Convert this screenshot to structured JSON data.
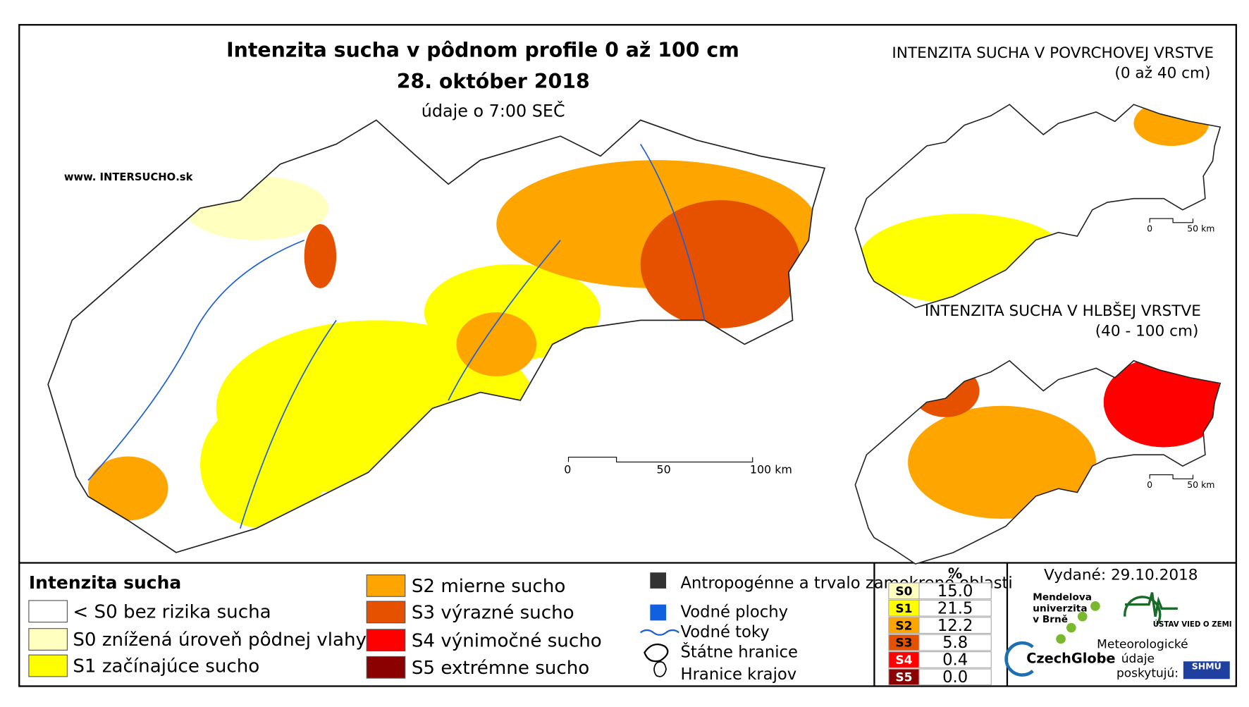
{
  "header": {
    "title": "Intenzita sucha v pôdnom profile 0 až 100 cm",
    "date": "28. október 2018",
    "subtitle": "údaje o 7:00 SEČ",
    "website_prefix": "www. INTER",
    "website_brand": "SUCHO",
    "website_suffix": ".sk"
  },
  "main_map": {
    "scale": [
      "0",
      "50",
      "100 km"
    ]
  },
  "insets": [
    {
      "title": "INTENZITA SUCHA V POVRCHOVEJ VRSTVE",
      "subtitle": "(0 až 40 cm)",
      "scale": [
        "0",
        "50 km"
      ]
    },
    {
      "title": "INTENZITA SUCHA V HLBŠEJ VRSTVE",
      "subtitle": "(40 - 100 cm)",
      "scale": [
        "0",
        "50 km"
      ]
    }
  ],
  "legend": {
    "title": "Intenzita sucha",
    "items": [
      {
        "label": "< S0 bez rizika sucha",
        "color": "#ffffff"
      },
      {
        "label": "S0 znížená úroveň pôdnej vlahy",
        "color": "#ffffc0"
      },
      {
        "label": "S1 začínajúce sucho",
        "color": "#ffff00"
      },
      {
        "label": "S2 mierne sucho",
        "color": "#ffa500"
      },
      {
        "label": "S3 výrazné sucho",
        "color": "#e65100"
      },
      {
        "label": "S4 výnimočné sucho",
        "color": "#ff0000"
      },
      {
        "label": "S5 extrémne sucho",
        "color": "#8b0000"
      }
    ],
    "features": [
      "Antropogénne a trvalo zamokrené oblasti",
      "Vodné plochy",
      "Vodné toky",
      "Štátne hranice",
      "Hranice krajov"
    ]
  },
  "table": {
    "header": "%",
    "rows": [
      {
        "class": "S0",
        "value": "15.0",
        "color": "#ffffc0"
      },
      {
        "class": "S1",
        "value": "21.5",
        "color": "#ffff00"
      },
      {
        "class": "S2",
        "value": "12.2",
        "color": "#ffa500"
      },
      {
        "class": "S3",
        "value": "5.8",
        "color": "#e65100"
      },
      {
        "class": "S4",
        "value": "0.4",
        "color": "#ff0000"
      },
      {
        "class": "S5",
        "value": "0.0",
        "color": "#8b0000"
      }
    ]
  },
  "footer": {
    "issued": "Vydané: 29.10.2018",
    "mendel": [
      "Mendelova",
      "univerzita",
      "v Brně"
    ],
    "czechglobe": "CzechGlobe",
    "ustav": "ÚSTAV VIED O ZEMI",
    "provided": [
      "Meteorologické",
      "údaje",
      "poskytujú:"
    ],
    "shmu": "SHMÚ"
  }
}
